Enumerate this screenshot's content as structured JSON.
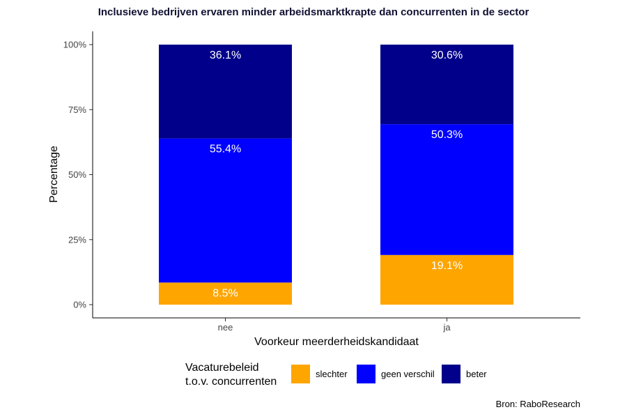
{
  "title": "Inclusieve bedrijven ervaren minder arbeidsmarktkrapte dan concurrenten in de sector",
  "source": "Bron: RaboResearch",
  "chart_data": {
    "type": "bar",
    "stacked": true,
    "categories": [
      "nee",
      "ja"
    ],
    "xlabel": "Voorkeur meerderheidskandidaat",
    "ylabel": "Percentage",
    "ylim": [
      0,
      100
    ],
    "yticks": [
      "0%",
      "25%",
      "50%",
      "75%",
      "100%"
    ],
    "yticks_values": [
      0,
      25,
      50,
      75,
      100
    ],
    "grid": false,
    "legend": {
      "title_lines": [
        "Vacaturebeleid",
        "t.o.v. concurrenten"
      ],
      "placement": "bottom"
    },
    "series": [
      {
        "name": "slechter",
        "color": "#FFA500",
        "values": [
          8.5,
          19.1
        ],
        "labels": [
          "8.5%",
          "19.1%"
        ]
      },
      {
        "name": "geen verschil",
        "color": "#0000FF",
        "values": [
          55.4,
          50.3
        ],
        "labels": [
          "55.4%",
          "50.3%"
        ]
      },
      {
        "name": "beter",
        "color": "#00008B",
        "values": [
          36.1,
          30.6
        ],
        "labels": [
          "36.1%",
          "30.6%"
        ]
      }
    ]
  }
}
